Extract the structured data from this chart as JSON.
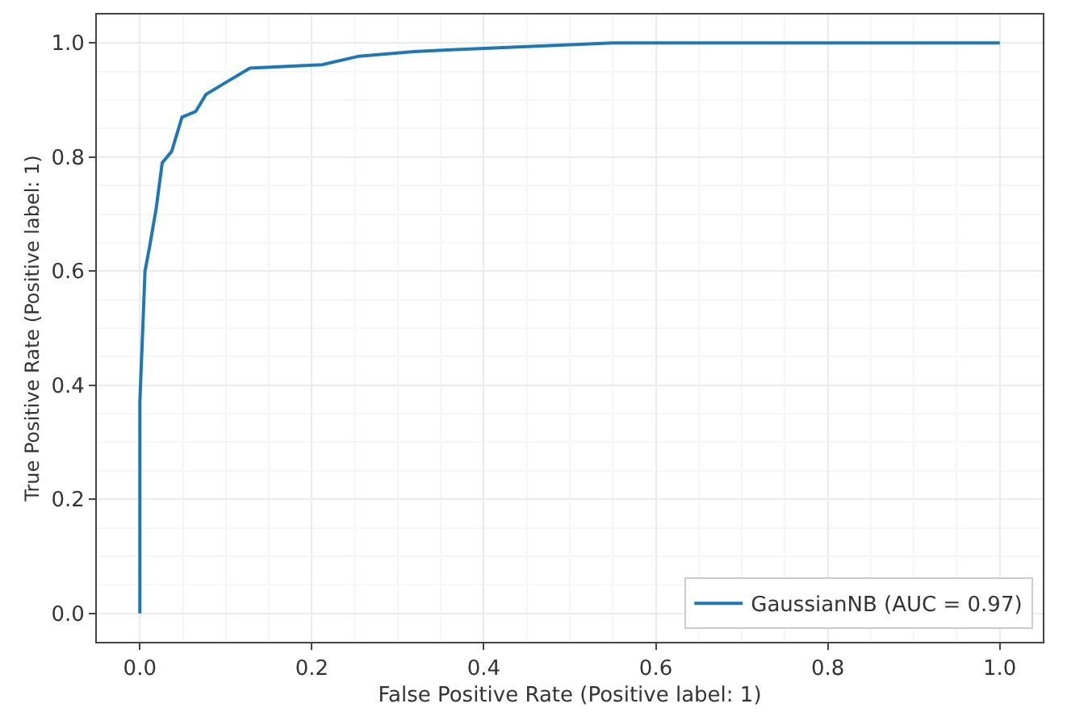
{
  "chart_data": {
    "type": "line",
    "xlabel": "False Positive Rate (Positive label: 1)",
    "ylabel": "True Positive Rate (Positive label: 1)",
    "x": [
      0,
      0,
      0.006,
      0.011,
      0.019,
      0.026,
      0.037,
      0.049,
      0.065,
      0.077,
      0.099,
      0.128,
      0.212,
      0.255,
      0.319,
      0.362,
      0.55,
      1.0
    ],
    "series": [
      {
        "name": "GaussianNB (AUC = 0.97)",
        "color": "#1f77b4",
        "values": [
          0,
          0.37,
          0.6,
          0.64,
          0.71,
          0.79,
          0.81,
          0.87,
          0.88,
          0.91,
          0.93,
          0.956,
          0.962,
          0.977,
          0.985,
          0.988,
          1.0,
          1.0
        ]
      }
    ],
    "xlim": [
      -0.05,
      1.05
    ],
    "ylim": [
      -0.05,
      1.05
    ],
    "xticks": [
      {
        "value": 0,
        "label": "0.0"
      },
      0.2,
      0.4,
      0.6,
      0.8,
      {
        "value": 1,
        "label": "1.0"
      }
    ],
    "yticks": [
      {
        "value": 0,
        "label": "0.0"
      },
      0.2,
      0.4,
      0.6,
      0.8,
      {
        "value": 1,
        "label": "1.0"
      }
    ],
    "grid": true,
    "legend": "bottom right",
    "marker": "none",
    "line_style": "solid"
  }
}
